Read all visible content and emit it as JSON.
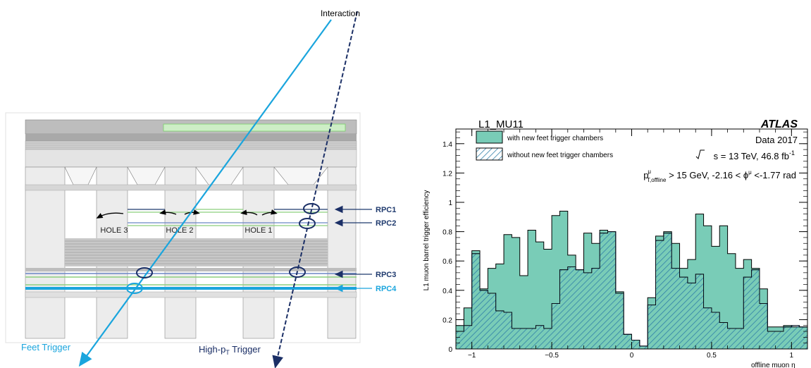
{
  "diagram": {
    "interaction_label": "Interaction",
    "feet_trigger_label": "Feet Trigger",
    "highpt_trigger_label": "High-p",
    "highpt_trigger_sub": "T",
    "highpt_trigger_suffix": " Trigger",
    "holes": [
      "HOLE 3",
      "HOLE 2",
      "HOLE 1"
    ],
    "rpc_labels": [
      "RPC1",
      "RPC2",
      "RPC3",
      "RPC4"
    ],
    "colors": {
      "feet": "#1aa5dd",
      "highpt": "#1b2f66",
      "rpc_dark": "#1f3a6e",
      "rpc4": "#1aa5dd",
      "structure": "#d9d9d9"
    }
  },
  "chart_data": {
    "type": "histogram",
    "title": "L1_MU11",
    "brand": "ATLAS",
    "info_lines": [
      "Data 2017"
    ],
    "energy_text": "s = 13 TeV, 46.8 fb",
    "energy_sup": "-1",
    "cut_text": {
      "p": "p",
      "p_sup": "μ",
      "p_sub": "T,offline",
      "mid": " > 15 GeV, -2.16 < ϕ",
      "phi_sup": "μ",
      "end": " <-1.77 rad"
    },
    "ylabel": "L1 muon barrel trigger efficiency",
    "xlabel": "offline muon η",
    "xlim": [
      -1.1,
      1.1
    ],
    "ylim": [
      0,
      1.5
    ],
    "xticks": [
      -1,
      -0.5,
      0,
      0.5,
      1
    ],
    "xtick_labels": [
      "−1",
      "−0.5",
      "0",
      "0.5",
      "1"
    ],
    "yticks": [
      0,
      0.2,
      0.4,
      0.6,
      0.8,
      1,
      1.2,
      1.4
    ],
    "ytick_labels": [
      "0",
      "0.2",
      "0.4",
      "0.6",
      "0.8",
      "1",
      "1.2",
      "1.4"
    ],
    "bin_width": 0.05,
    "bin_start": -1.1,
    "series": [
      {
        "name": "with new feet trigger chambers",
        "color": "#79ccb7",
        "values": [
          0.16,
          0.28,
          0.67,
          0.41,
          0.55,
          0.58,
          0.78,
          0.76,
          0.5,
          0.81,
          0.73,
          0.68,
          0.91,
          0.94,
          0.64,
          0.54,
          0.79,
          0.72,
          0.81,
          0.8,
          0.39,
          0.1,
          0.06,
          0.02,
          0.35,
          0.77,
          0.8,
          0.72,
          0.55,
          0.61,
          0.92,
          0.84,
          0.7,
          0.84,
          0.65,
          0.55,
          0.61,
          0.55,
          0.41,
          0.15,
          0.15,
          0.16,
          0.15,
          0.15
        ]
      },
      {
        "name": "without new feet trigger chambers",
        "color": "#2f7fa8",
        "values": [
          0.12,
          0.16,
          0.65,
          0.4,
          0.38,
          0.26,
          0.25,
          0.14,
          0.14,
          0.14,
          0.16,
          0.14,
          0.31,
          0.54,
          0.56,
          0.54,
          0.52,
          0.55,
          0.79,
          0.8,
          0.38,
          0.1,
          0.06,
          0.02,
          0.3,
          0.74,
          0.79,
          0.55,
          0.49,
          0.45,
          0.51,
          0.28,
          0.25,
          0.18,
          0.14,
          0.14,
          0.49,
          0.54,
          0.31,
          0.12,
          0.12,
          0.15,
          0.16,
          0.15
        ]
      }
    ]
  }
}
